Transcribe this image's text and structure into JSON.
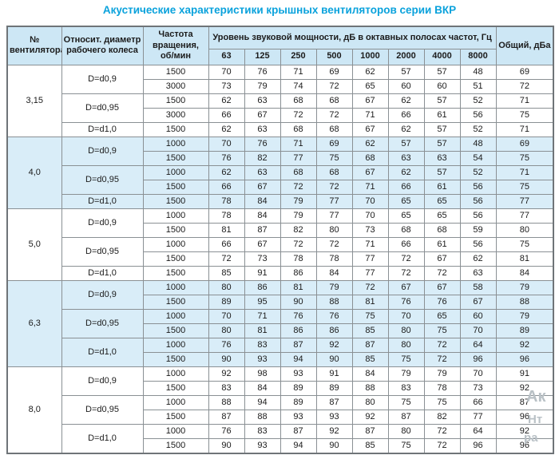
{
  "title": "Акустические характеристики крышных вентиляторов серии ВКР",
  "colors": {
    "title_text": "#0aa2dc",
    "header_bg": "#cde7f5",
    "shaded_row_bg": "#d9edf8",
    "grid_border": "#8a9094"
  },
  "table": {
    "headers": {
      "fan_no": "№ вентилятора",
      "diameter": "Относит. диаметр рабочего колеса",
      "speed": "Частота вращения, об/мин",
      "spl_group": "Уровень звуковой мощности, дБ в октавных полосах частот, Гц",
      "frequencies": [
        "63",
        "125",
        "250",
        "500",
        "1000",
        "2000",
        "4000",
        "8000"
      ],
      "total": "Общий, дБа"
    },
    "groups": [
      {
        "fan": "3,15",
        "shaded": false,
        "subgroups": [
          {
            "diameter": "D=d0,9",
            "rows": [
              {
                "speed": "1500",
                "levels": [
                  70,
                  76,
                  71,
                  69,
                  62,
                  57,
                  57,
                  48
                ],
                "total": 69
              },
              {
                "speed": "3000",
                "levels": [
                  73,
                  79,
                  74,
                  72,
                  65,
                  60,
                  60,
                  51
                ],
                "total": 72
              }
            ]
          },
          {
            "diameter": "D=d0,95",
            "rows": [
              {
                "speed": "1500",
                "levels": [
                  62,
                  63,
                  68,
                  68,
                  67,
                  62,
                  57,
                  52
                ],
                "total": 71
              },
              {
                "speed": "3000",
                "levels": [
                  66,
                  67,
                  72,
                  72,
                  71,
                  66,
                  61,
                  56
                ],
                "total": 75
              }
            ]
          },
          {
            "diameter": "D=d1,0",
            "rows": [
              {
                "speed": "1500",
                "levels": [
                  62,
                  63,
                  68,
                  68,
                  67,
                  62,
                  57,
                  52
                ],
                "total": 71
              }
            ]
          }
        ]
      },
      {
        "fan": "4,0",
        "shaded": true,
        "subgroups": [
          {
            "diameter": "D=d0,9",
            "rows": [
              {
                "speed": "1000",
                "levels": [
                  70,
                  76,
                  71,
                  69,
                  62,
                  57,
                  57,
                  48
                ],
                "total": 69
              },
              {
                "speed": "1500",
                "levels": [
                  76,
                  82,
                  77,
                  75,
                  68,
                  63,
                  63,
                  54
                ],
                "total": 75
              }
            ]
          },
          {
            "diameter": "D=d0,95",
            "rows": [
              {
                "speed": "1000",
                "levels": [
                  62,
                  63,
                  68,
                  68,
                  67,
                  62,
                  57,
                  52
                ],
                "total": 71
              },
              {
                "speed": "1500",
                "levels": [
                  66,
                  67,
                  72,
                  72,
                  71,
                  66,
                  61,
                  56
                ],
                "total": 75
              }
            ]
          },
          {
            "diameter": "D=d1,0",
            "rows": [
              {
                "speed": "1500",
                "levels": [
                  78,
                  84,
                  79,
                  77,
                  70,
                  65,
                  65,
                  56
                ],
                "total": 77
              }
            ]
          }
        ]
      },
      {
        "fan": "5,0",
        "shaded": false,
        "subgroups": [
          {
            "diameter": "D=d0,9",
            "rows": [
              {
                "speed": "1000",
                "levels": [
                  78,
                  84,
                  79,
                  77,
                  70,
                  65,
                  65,
                  56
                ],
                "total": 77
              },
              {
                "speed": "1500",
                "levels": [
                  81,
                  87,
                  82,
                  80,
                  73,
                  68,
                  68,
                  59
                ],
                "total": 80
              }
            ]
          },
          {
            "diameter": "D=d0,95",
            "rows": [
              {
                "speed": "1000",
                "levels": [
                  66,
                  67,
                  72,
                  72,
                  71,
                  66,
                  61,
                  56
                ],
                "total": 75
              },
              {
                "speed": "1500",
                "levels": [
                  72,
                  73,
                  78,
                  78,
                  77,
                  72,
                  67,
                  62
                ],
                "total": 81
              }
            ]
          },
          {
            "diameter": "D=d1,0",
            "rows": [
              {
                "speed": "1500",
                "levels": [
                  85,
                  91,
                  86,
                  84,
                  77,
                  72,
                  72,
                  63
                ],
                "total": 84
              }
            ]
          }
        ]
      },
      {
        "fan": "6,3",
        "shaded": true,
        "subgroups": [
          {
            "diameter": "D=d0,9",
            "rows": [
              {
                "speed": "1000",
                "levels": [
                  80,
                  86,
                  81,
                  79,
                  72,
                  67,
                  67,
                  58
                ],
                "total": 79
              },
              {
                "speed": "1500",
                "levels": [
                  89,
                  95,
                  90,
                  88,
                  81,
                  76,
                  76,
                  67
                ],
                "total": 88
              }
            ]
          },
          {
            "diameter": "D=d0,95",
            "rows": [
              {
                "speed": "1000",
                "levels": [
                  70,
                  71,
                  76,
                  76,
                  75,
                  70,
                  65,
                  60
                ],
                "total": 79
              },
              {
                "speed": "1500",
                "levels": [
                  80,
                  81,
                  86,
                  86,
                  85,
                  80,
                  75,
                  70
                ],
                "total": 89
              }
            ]
          },
          {
            "diameter": "D=d1,0",
            "rows": [
              {
                "speed": "1000",
                "levels": [
                  76,
                  83,
                  87,
                  92,
                  87,
                  80,
                  72,
                  64
                ],
                "total": 92
              },
              {
                "speed": "1500",
                "levels": [
                  90,
                  93,
                  94,
                  90,
                  85,
                  75,
                  72,
                  96
                ],
                "total": 96
              }
            ]
          }
        ]
      },
      {
        "fan": "8,0",
        "shaded": false,
        "subgroups": [
          {
            "diameter": "D=d0,9",
            "rows": [
              {
                "speed": "1000",
                "levels": [
                  92,
                  98,
                  93,
                  91,
                  84,
                  79,
                  79,
                  70
                ],
                "total": 91
              },
              {
                "speed": "1500",
                "levels": [
                  83,
                  84,
                  89,
                  89,
                  88,
                  83,
                  78,
                  73
                ],
                "total": 92
              }
            ]
          },
          {
            "diameter": "D=d0,95",
            "rows": [
              {
                "speed": "1000",
                "levels": [
                  88,
                  94,
                  89,
                  87,
                  80,
                  75,
                  75,
                  66
                ],
                "total": 87
              },
              {
                "speed": "1500",
                "levels": [
                  87,
                  88,
                  93,
                  93,
                  92,
                  87,
                  82,
                  77
                ],
                "total": 96
              }
            ]
          },
          {
            "diameter": "D=d1,0",
            "rows": [
              {
                "speed": "1000",
                "levels": [
                  76,
                  83,
                  87,
                  92,
                  87,
                  80,
                  72,
                  64
                ],
                "total": 92
              },
              {
                "speed": "1500",
                "levels": [
                  90,
                  93,
                  94,
                  90,
                  85,
                  75,
                  72,
                  96
                ],
                "total": 96
              }
            ]
          }
        ]
      }
    ]
  },
  "watermark": {
    "line1": "Ак",
    "line2": "Нт",
    "line3": "ра"
  }
}
